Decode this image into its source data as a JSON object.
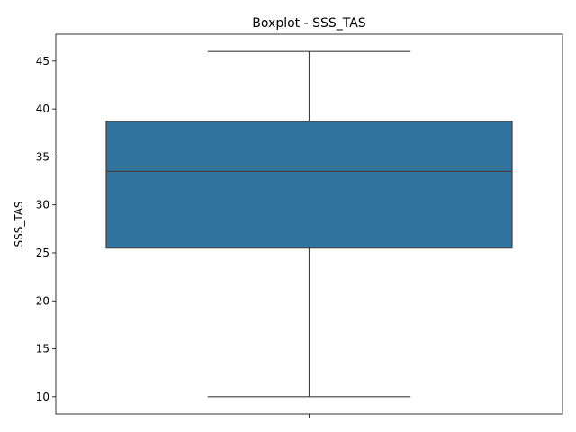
{
  "chart_data": {
    "type": "boxplot",
    "title": "Boxplot - SSS_TAS",
    "xlabel": "",
    "ylabel": "SSS_TAS",
    "ylim": [
      8.2,
      47.8
    ],
    "yticks": [
      10,
      15,
      20,
      25,
      30,
      35,
      40,
      45
    ],
    "grid": false,
    "box": {
      "whisker_low": 10,
      "q1": 25.5,
      "median": 33.5,
      "q3": 38.7,
      "whisker_high": 46
    },
    "box_color": "#3274a1",
    "line_color": "#3f3f3f"
  }
}
